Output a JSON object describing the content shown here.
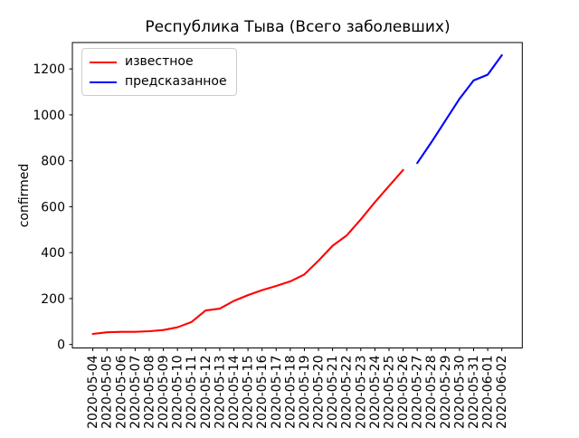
{
  "window": {
    "background": "#ffffff"
  },
  "chart_data": {
    "type": "line",
    "title": "Республика Тыва (Всего заболевших)",
    "xlabel": "",
    "ylabel": "confirmed",
    "grid": false,
    "legend_position": "upper left",
    "axis_color": "#000000",
    "x_labels": [
      "2020-05-04",
      "2020-05-05",
      "2020-05-06",
      "2020-05-07",
      "2020-05-08",
      "2020-05-09",
      "2020-05-10",
      "2020-05-11",
      "2020-05-12",
      "2020-05-13",
      "2020-05-14",
      "2020-05-15",
      "2020-05-16",
      "2020-05-17",
      "2020-05-18",
      "2020-05-19",
      "2020-05-20",
      "2020-05-21",
      "2020-05-22",
      "2020-05-23",
      "2020-05-24",
      "2020-05-25",
      "2020-05-26",
      "2020-05-27",
      "2020-05-28",
      "2020-05-29",
      "2020-05-30",
      "2020-05-31",
      "2020-06-01",
      "2020-06-02"
    ],
    "y_ticks": [
      0,
      200,
      400,
      600,
      800,
      1000,
      1200
    ],
    "xlim": [
      -1.45,
      30.45
    ],
    "ylim": [
      -15,
      1315
    ],
    "series": [
      {
        "name": "известное",
        "color": "#ff0000",
        "x_start_index": 0,
        "values": [
          46,
          53,
          55,
          55,
          58,
          63,
          75,
          98,
          148,
          156,
          190,
          215,
          237,
          255,
          275,
          305,
          365,
          430,
          475,
          545,
          620,
          690,
          760
        ]
      },
      {
        "name": "предсказанное",
        "color": "#0000ff",
        "x_start_index": 23,
        "values": [
          790,
          880,
          975,
          1070,
          1150,
          1175,
          1260
        ]
      }
    ]
  }
}
